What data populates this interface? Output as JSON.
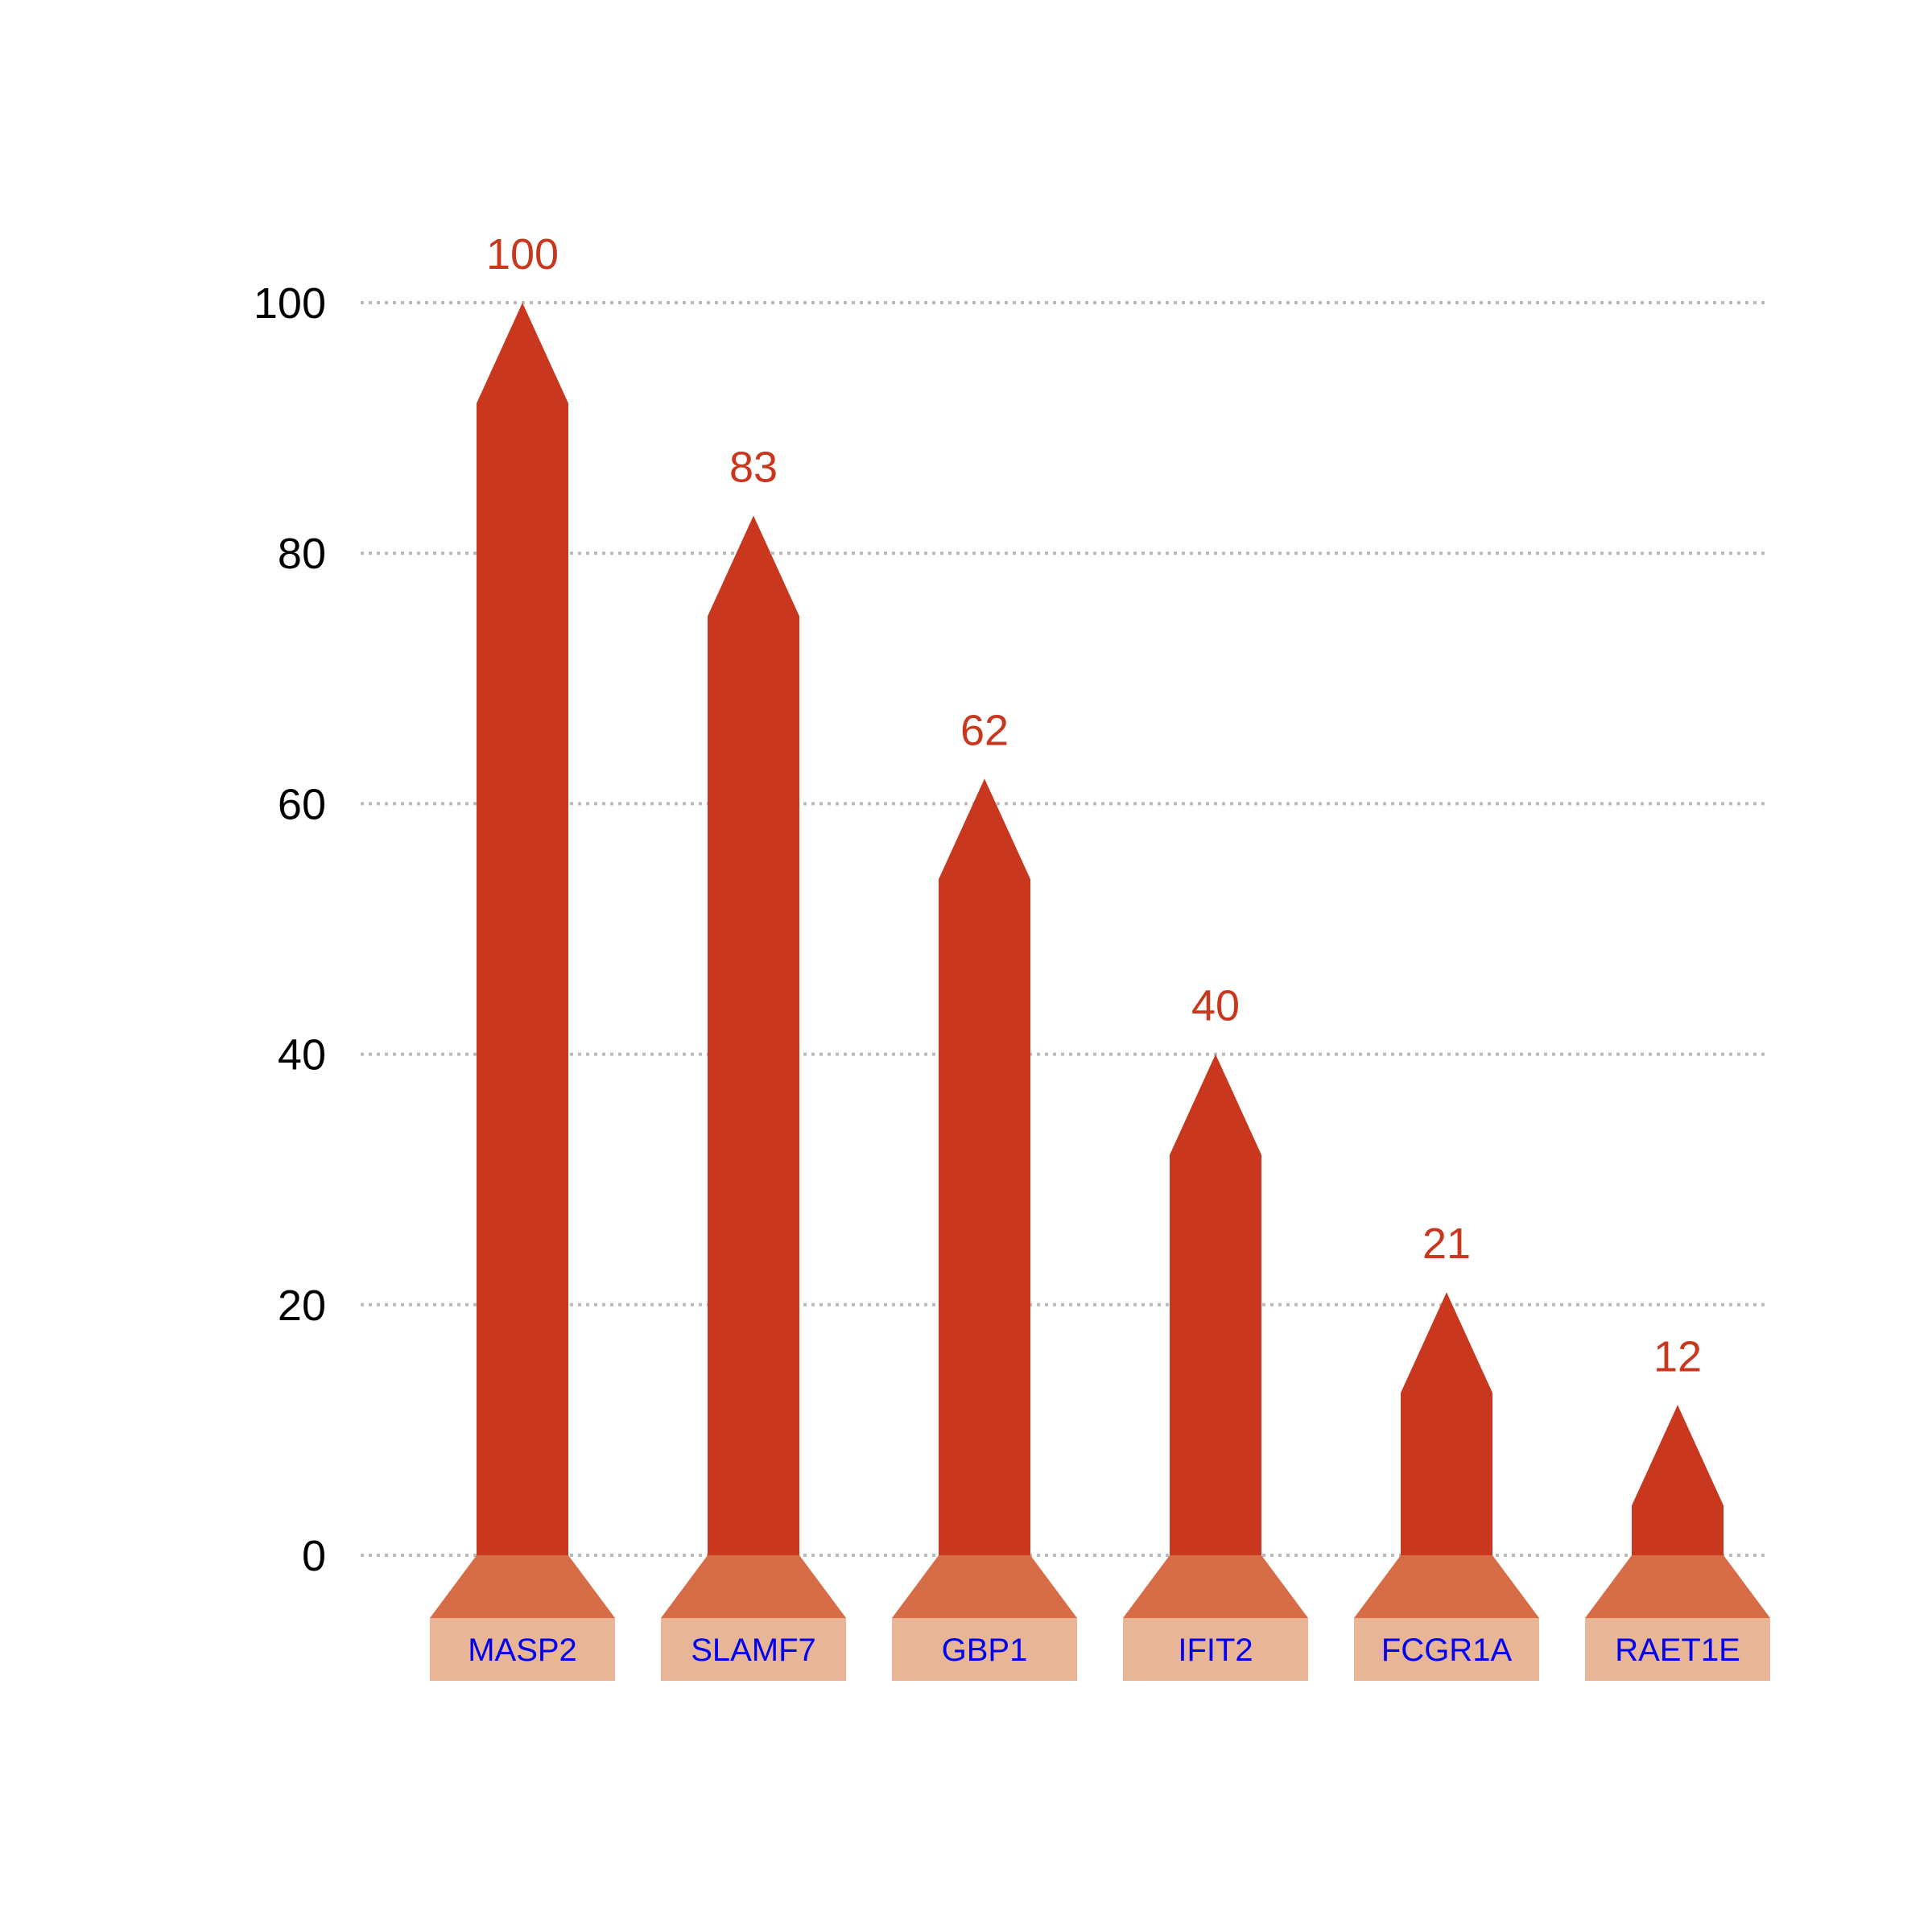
{
  "chart_data": {
    "type": "bar",
    "categories": [
      "MASP2",
      "SLAMF7",
      "GBP1",
      "IFIT2",
      "FCGR1A",
      "RAET1E"
    ],
    "values": [
      100,
      83,
      62,
      40,
      21,
      12
    ],
    "value_labels": [
      "100",
      "83",
      "62",
      "40",
      "21",
      "12"
    ],
    "yticks": [
      "0",
      "20",
      "40",
      "60",
      "80",
      "100"
    ],
    "ylim": [
      0,
      100
    ],
    "grid": true,
    "title": "",
    "xlabel": "",
    "ylabel": "",
    "colors": {
      "bar": "#c8371e",
      "base_trapezoid": "#d66d47",
      "label_box": "#e8b597",
      "category_text": "#0000ee",
      "value_text": "#c8371e",
      "grid": "#bbbbbb"
    }
  }
}
